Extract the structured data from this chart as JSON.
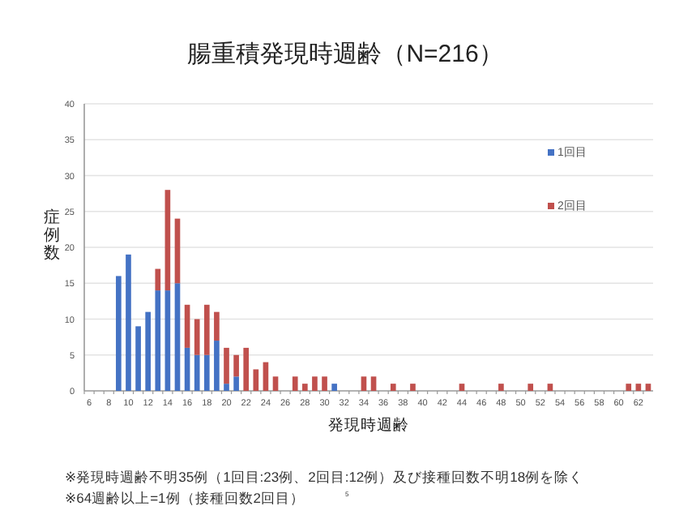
{
  "chart_data": {
    "type": "bar",
    "title": "腸重積発現時週齢（N=216）",
    "xlabel": "発現時週齢",
    "ylabel": "症例数",
    "categories": [
      "6",
      null,
      "8",
      null,
      "10",
      null,
      "12",
      null,
      "14",
      null,
      "16",
      null,
      "18",
      null,
      "20",
      null,
      "22",
      null,
      "24",
      null,
      "26",
      null,
      "28",
      null,
      "30",
      null,
      "32",
      null,
      "34",
      null,
      "36",
      null,
      "38",
      null,
      "40",
      null,
      "42",
      null,
      "44",
      null,
      "46",
      null,
      "48",
      null,
      "50",
      null,
      "52",
      null,
      "54",
      null,
      "56",
      null,
      "58",
      null,
      "60",
      null,
      "62",
      null
    ],
    "series": [
      {
        "name": "1回目",
        "color": "#4472c4",
        "values": [
          0,
          0,
          0,
          16,
          19,
          9,
          11,
          14,
          14,
          15,
          6,
          5,
          5,
          7,
          1,
          2,
          0,
          0,
          0,
          0,
          0,
          0,
          0,
          0,
          0,
          1,
          0,
          0,
          0,
          0,
          0,
          0,
          0,
          0,
          0,
          0,
          0,
          0,
          0,
          0,
          0,
          0,
          0,
          0,
          0,
          0,
          0,
          0,
          0,
          0,
          0,
          0,
          0,
          0,
          0,
          0,
          0,
          0
        ]
      },
      {
        "name": "2回目",
        "color": "#c0504d",
        "values": [
          0,
          0,
          0,
          0,
          0,
          0,
          0,
          3,
          14,
          9,
          6,
          5,
          7,
          4,
          5,
          3,
          6,
          3,
          4,
          2,
          0,
          2,
          1,
          2,
          2,
          0,
          0,
          0,
          2,
          2,
          0,
          1,
          0,
          1,
          0,
          0,
          0,
          0,
          1,
          0,
          0,
          0,
          1,
          0,
          0,
          1,
          0,
          1,
          0,
          0,
          0,
          0,
          0,
          0,
          0,
          1,
          1,
          1
        ]
      }
    ],
    "stacked": true,
    "ylim": [
      0,
      40
    ],
    "yticks": [
      0,
      5,
      10,
      15,
      20,
      25,
      30,
      35,
      40
    ],
    "grid": "y",
    "legend": "right",
    "annotations": [
      "※発現時週齢不明35例（1回目:23例、2回目:12例）及び接種回数不明18例を除く",
      "※64週齢以上=1例（接種回数2回目）",
      "5"
    ]
  }
}
